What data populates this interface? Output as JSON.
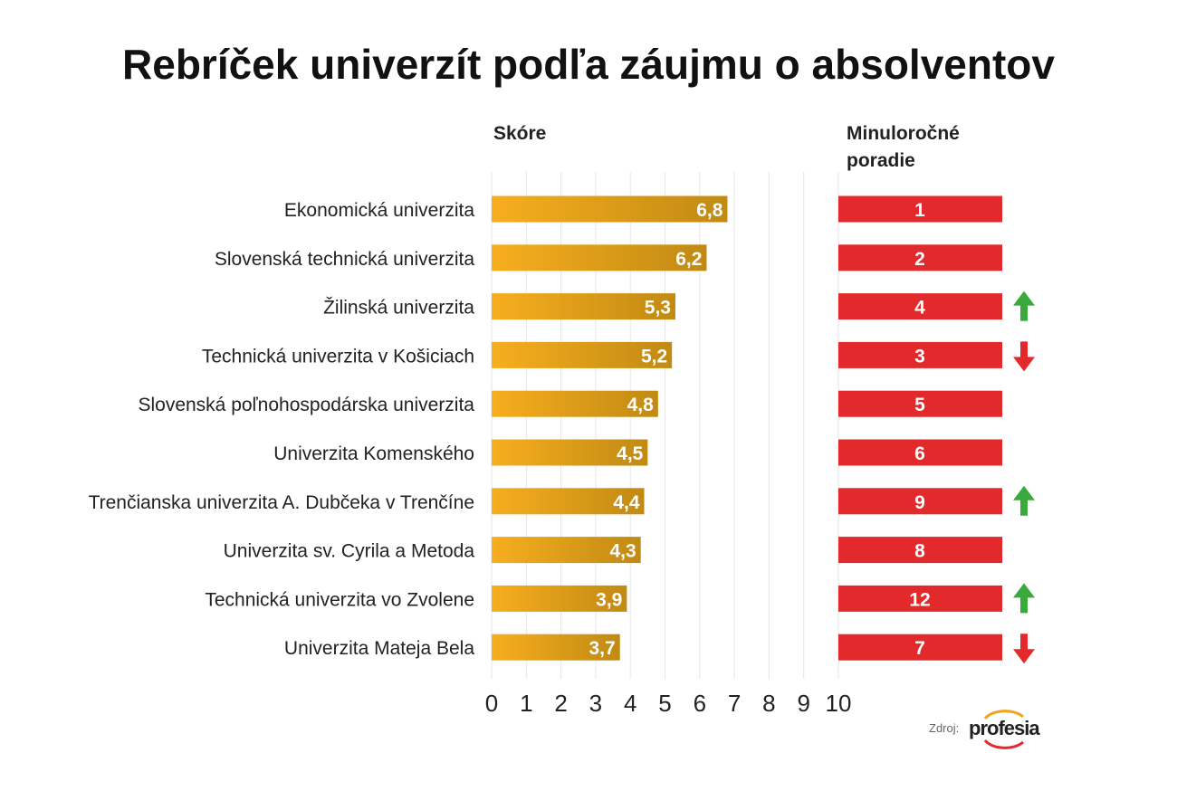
{
  "chart_data": {
    "type": "bar",
    "title": "Rebríček univerzít podľa záujmu o absolventov",
    "score_header": "Skóre",
    "rank_header_line1": "Minuloročné",
    "rank_header_line2": "poradie",
    "categories": [
      "Ekonomická univerzita",
      "Slovenská technická univerzita",
      "Žilinská univerzita",
      "Technická univerzita v Košiciach",
      "Slovenská poľnohospodárska univerzita",
      "Univerzita Komenského",
      "Trenčianska univerzita A. Dubčeka v Trenčíne",
      "Univerzita sv. Cyrila a Metoda",
      "Technická univerzita vo Zvolene",
      "Univerzita Mateja Bela"
    ],
    "values": [
      6.8,
      6.2,
      5.3,
      5.2,
      4.8,
      4.5,
      4.4,
      4.3,
      3.9,
      3.7
    ],
    "value_labels": [
      "6,8",
      "6,2",
      "5,3",
      "5,2",
      "4,8",
      "4,5",
      "4,4",
      "4,3",
      "3,9",
      "3,7"
    ],
    "previous_rank": [
      "1",
      "2",
      "4",
      "3",
      "5",
      "6",
      "9",
      "8",
      "12",
      "7"
    ],
    "trend": [
      "none",
      "none",
      "up",
      "down",
      "none",
      "none",
      "up",
      "none",
      "up",
      "down"
    ],
    "xlim": [
      0,
      10
    ],
    "xticks": [
      "0",
      "1",
      "2",
      "3",
      "4",
      "5",
      "6",
      "7",
      "8",
      "9",
      "10"
    ],
    "grid": true,
    "colors": {
      "bar_start": "#f7ae1f",
      "bar_end": "#c18a13",
      "rank_bar": "#e2292b",
      "up": "#3aa93c",
      "down": "#e2292b",
      "grid": "#e6e6e6"
    }
  },
  "source": {
    "label": "Zdroj:",
    "logo": "profesia"
  }
}
